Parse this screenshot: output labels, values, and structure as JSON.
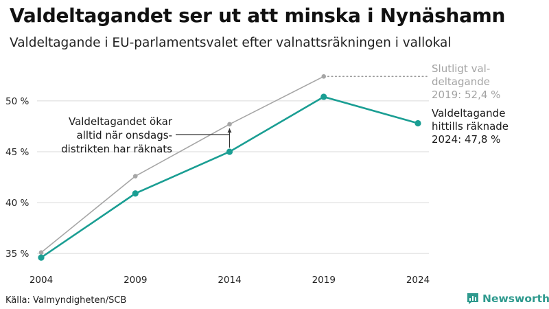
{
  "title": "Valdeltagandet ser ut att minska i Nynäshamn",
  "subtitle": "Valdeltagande i EU-parlamentsvalet efter valnattsräkningen i vallokal",
  "source": "Källa: Valmyndigheten/SCB",
  "brand": {
    "name": "Newsworthy",
    "icon": "newsworthy-logo-icon",
    "color": "#2f9a8e"
  },
  "colors": {
    "teal": "#1a9e93",
    "gray": "#a6a6a6",
    "grid": "#d9d9d9",
    "arrow": "#333333"
  },
  "chart_data": {
    "type": "line",
    "categories": [
      "2004",
      "2009",
      "2014",
      "2019",
      "2024"
    ],
    "yticks": [
      "35 %",
      "40 %",
      "45 %",
      "50 %"
    ],
    "ytick_values": [
      35,
      40,
      45,
      50
    ],
    "ylim": [
      34,
      53.5
    ],
    "xlabel": "",
    "ylabel": "",
    "grid": true,
    "series": [
      {
        "key": "final",
        "values": [
          35.1,
          42.6,
          47.7,
          52.4,
          null
        ],
        "color": "#a6a6a6"
      },
      {
        "key": "counted",
        "values": [
          34.6,
          40.9,
          45.0,
          50.4,
          47.8
        ],
        "color": "#1a9e93"
      }
    ],
    "annotations": {
      "final_label": [
        "Slutligt val-",
        "deltagande",
        "2019: 52,4 %"
      ],
      "counted_label": [
        "Valdeltagande",
        "hittills räknade",
        "2024: 47,8 %"
      ],
      "gap_note": [
        "Valdeltagandet ökar",
        "alltid när onsdags-",
        "distrikten har räknats"
      ]
    }
  }
}
